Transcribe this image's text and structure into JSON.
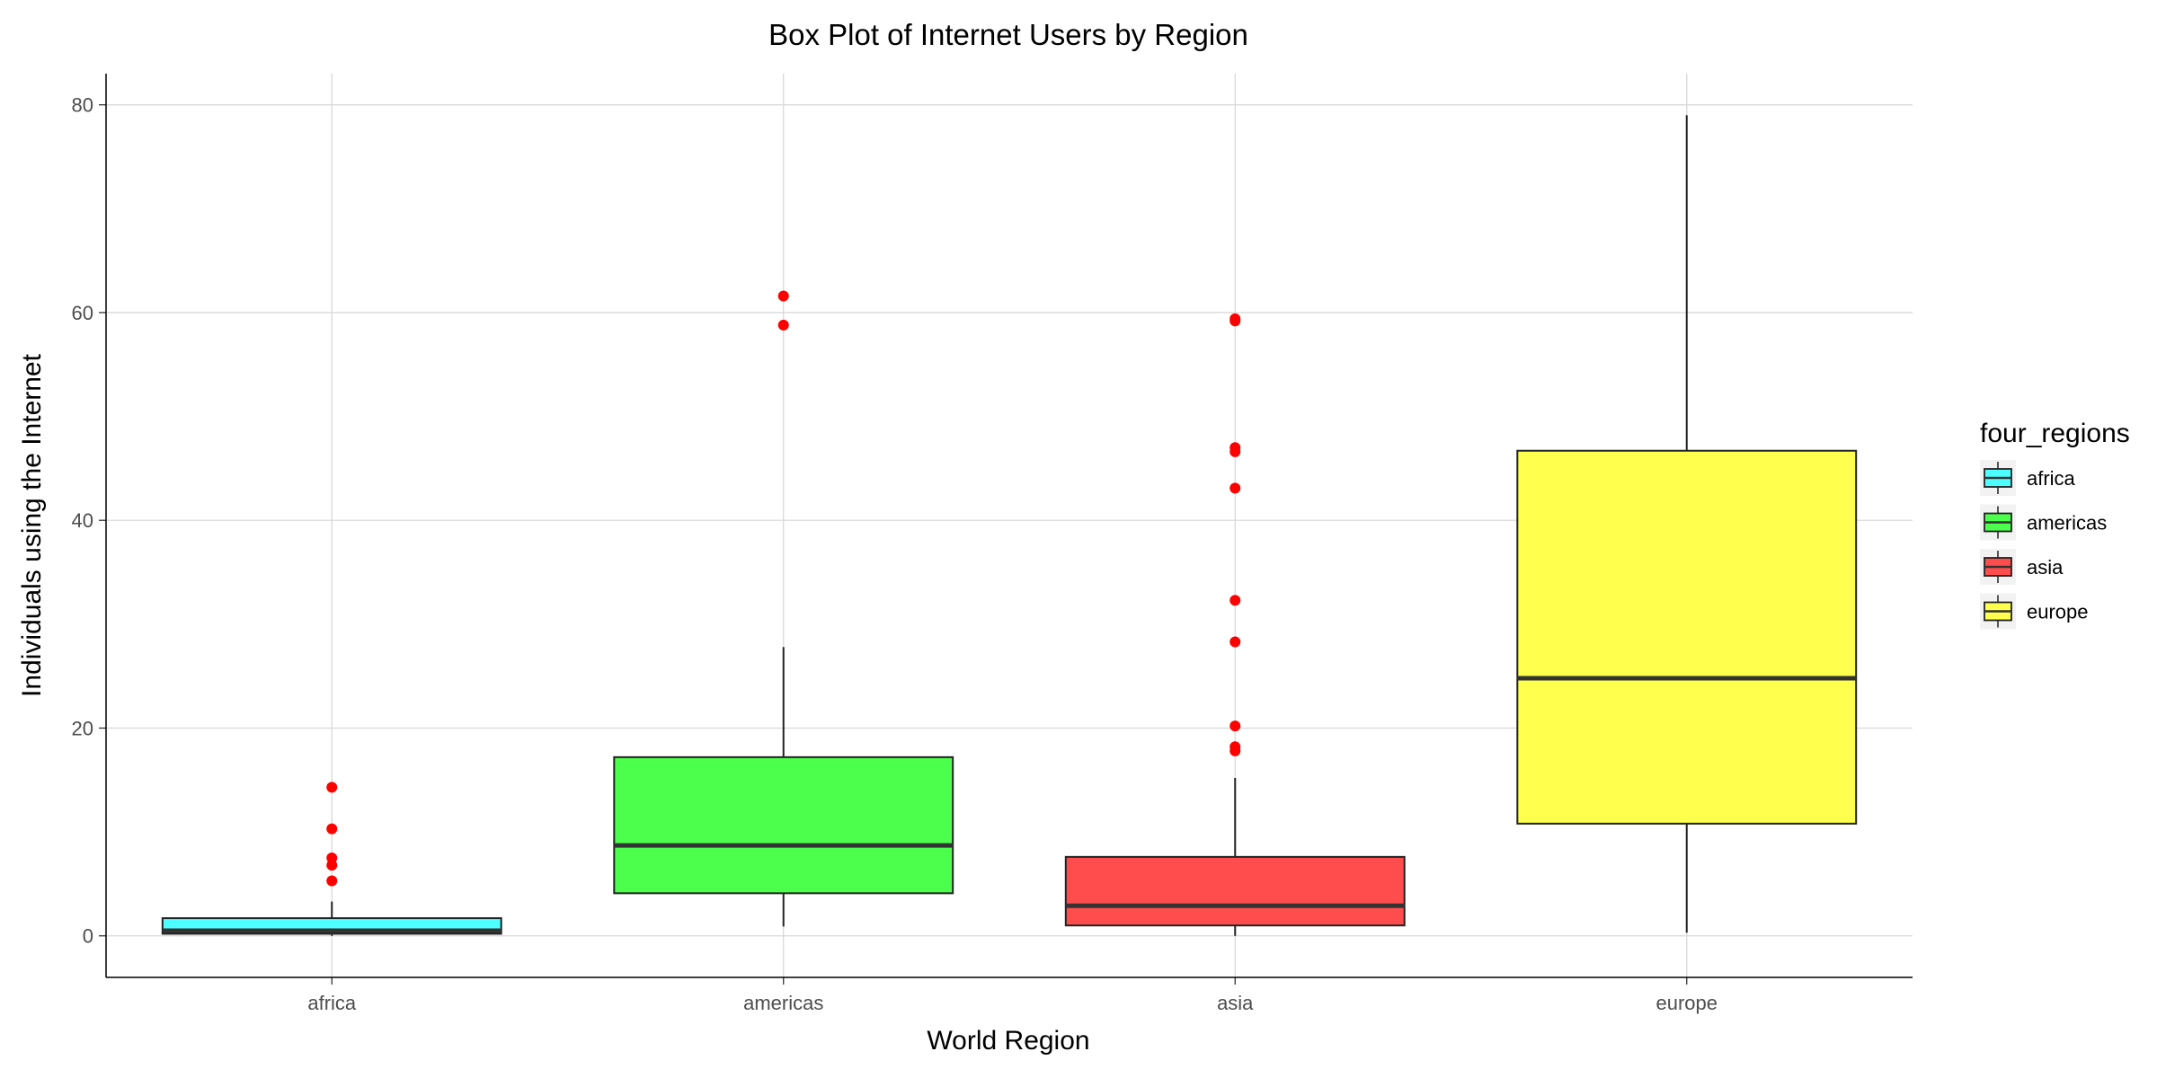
{
  "chart_data": {
    "type": "box",
    "title": "Box Plot of Internet Users by Region",
    "xlabel": "World Region",
    "ylabel": "Individuals using the Internet",
    "ylim": [
      -4,
      83
    ],
    "yticks": [
      0,
      20,
      40,
      60,
      80
    ],
    "grid": true,
    "legend": {
      "title": "four_regions",
      "placement": "right"
    },
    "categories": [
      "africa",
      "americas",
      "asia",
      "europe"
    ],
    "boxes": [
      {
        "category": "africa",
        "color": "#4DFFFF",
        "whisker_low": 0.0,
        "q1": 0.2,
        "median": 0.5,
        "q3": 1.7,
        "whisker_high": 3.3,
        "outliers": [
          5.3,
          6.8,
          7.5,
          10.3,
          14.3
        ]
      },
      {
        "category": "americas",
        "color": "#4DFF4D",
        "whisker_low": 0.9,
        "q1": 4.1,
        "median": 8.7,
        "q3": 17.2,
        "whisker_high": 27.8,
        "outliers": [
          58.8,
          61.6
        ]
      },
      {
        "category": "asia",
        "color": "#FF4D4D",
        "whisker_low": 0.0,
        "q1": 1.0,
        "median": 2.9,
        "q3": 7.6,
        "whisker_high": 15.2,
        "outliers": [
          17.8,
          18.2,
          20.2,
          28.3,
          32.3,
          43.1,
          46.6,
          47.0,
          59.2,
          59.4
        ]
      },
      {
        "category": "europe",
        "color": "#FFFF4D",
        "whisker_low": 0.3,
        "q1": 10.8,
        "median": 24.8,
        "q3": 46.7,
        "whisker_high": 79.0,
        "outliers": []
      }
    ],
    "outlier_color": "#FF0000"
  }
}
